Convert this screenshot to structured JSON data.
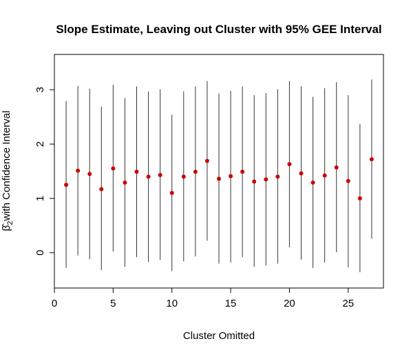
{
  "chart_data": {
    "type": "scatter",
    "title": "Slope Estimate, Leaving out Cluster with 95% GEE Interval",
    "xlabel": "Cluster Omitted",
    "ylabel_symbol": "β̂",
    "ylabel_subscript": "2",
    "ylabel_text": "with Confidence Interval",
    "x_ticks": [
      0,
      5,
      10,
      15,
      20,
      25
    ],
    "y_ticks": [
      0,
      1,
      2,
      3
    ],
    "xlim": [
      0,
      28
    ],
    "ylim": [
      -0.65,
      3.65
    ],
    "grid": false,
    "point_color": "#cc0000",
    "interval_color": "#333333",
    "x": [
      1,
      2,
      3,
      4,
      5,
      6,
      7,
      8,
      9,
      10,
      11,
      12,
      13,
      14,
      15,
      16,
      17,
      18,
      19,
      20,
      21,
      22,
      23,
      24,
      25,
      26,
      27
    ],
    "estimate": [
      1.25,
      1.51,
      1.45,
      1.17,
      1.55,
      1.29,
      1.49,
      1.4,
      1.43,
      1.1,
      1.4,
      1.49,
      1.69,
      1.36,
      1.41,
      1.49,
      1.31,
      1.35,
      1.4,
      1.63,
      1.46,
      1.29,
      1.42,
      1.57,
      1.32,
      1.0,
      1.72
    ],
    "lower": [
      -0.28,
      -0.05,
      -0.12,
      -0.32,
      0.02,
      -0.26,
      -0.08,
      -0.17,
      -0.13,
      -0.34,
      -0.16,
      -0.07,
      0.22,
      -0.2,
      -0.18,
      -0.08,
      -0.26,
      -0.24,
      -0.2,
      0.1,
      -0.13,
      -0.28,
      -0.18,
      0.01,
      -0.27,
      -0.36,
      0.26
    ],
    "upper": [
      2.79,
      3.07,
      3.02,
      2.69,
      3.09,
      2.85,
      3.06,
      2.97,
      3.01,
      2.54,
      2.97,
      3.06,
      3.16,
      2.93,
      2.98,
      3.06,
      2.9,
      2.94,
      3.01,
      3.16,
      3.06,
      2.87,
      3.03,
      3.14,
      2.9,
      2.37,
      3.19
    ]
  }
}
